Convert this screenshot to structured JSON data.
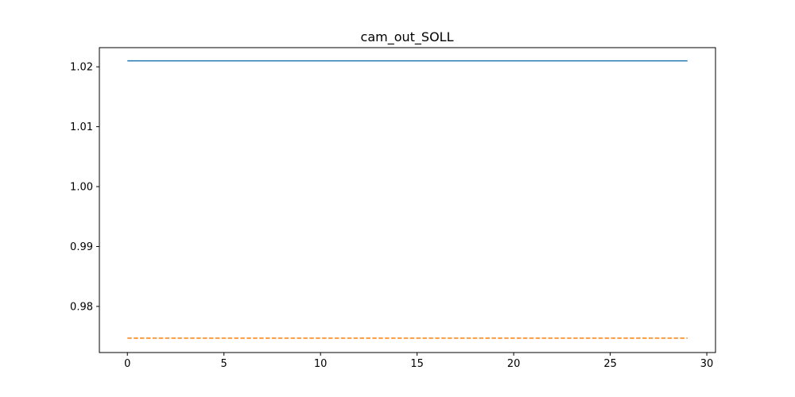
{
  "chart_data": {
    "type": "line",
    "title": "cam_out_SOLL",
    "xlabel": "",
    "ylabel": "",
    "xlim": [
      -1.45,
      30.45
    ],
    "ylim": [
      0.9723,
      1.0232
    ],
    "grid": false,
    "x_ticks": [
      0,
      5,
      10,
      15,
      20,
      25,
      30
    ],
    "x_tick_labels": [
      "0",
      "5",
      "10",
      "15",
      "20",
      "25",
      "30"
    ],
    "y_ticks": [
      0.98,
      0.99,
      1.0,
      1.01,
      1.02
    ],
    "y_tick_labels": [
      "0.98",
      "0.99",
      "1.00",
      "1.01",
      "1.02"
    ],
    "series": [
      {
        "color": "#1f77b4",
        "linestyle": "solid",
        "x": [
          0,
          29
        ],
        "y": [
          1.021,
          1.021
        ]
      },
      {
        "color": "#ff7f0e",
        "linestyle": "dashed",
        "x": [
          0,
          29
        ],
        "y": [
          0.9747,
          0.9747
        ]
      }
    ]
  }
}
